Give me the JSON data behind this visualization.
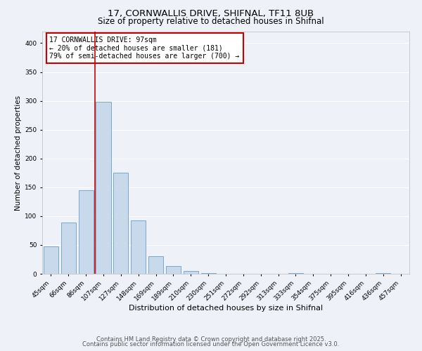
{
  "title": "17, CORNWALLIS DRIVE, SHIFNAL, TF11 8UB",
  "subtitle": "Size of property relative to detached houses in Shifnal",
  "xlabel": "Distribution of detached houses by size in Shifnal",
  "ylabel": "Number of detached properties",
  "bar_labels": [
    "45sqm",
    "66sqm",
    "86sqm",
    "107sqm",
    "127sqm",
    "148sqm",
    "169sqm",
    "189sqm",
    "210sqm",
    "230sqm",
    "251sqm",
    "272sqm",
    "292sqm",
    "313sqm",
    "333sqm",
    "354sqm",
    "375sqm",
    "395sqm",
    "416sqm",
    "436sqm",
    "457sqm"
  ],
  "bar_values": [
    47,
    89,
    145,
    298,
    175,
    92,
    30,
    13,
    5,
    1,
    0,
    0,
    0,
    0,
    1,
    0,
    0,
    0,
    0,
    1,
    0
  ],
  "bar_color": "#c9d9ec",
  "bar_edgecolor": "#6a9fc8",
  "vline_color": "#cc0000",
  "ylim": [
    0,
    420
  ],
  "yticks": [
    0,
    50,
    100,
    150,
    200,
    250,
    300,
    350,
    400
  ],
  "annotation_title": "17 CORNWALLIS DRIVE: 97sqm",
  "annotation_line1": "← 20% of detached houses are smaller (181)",
  "annotation_line2": "79% of semi-detached houses are larger (700) →",
  "annotation_box_color": "#ffffff",
  "annotation_box_edgecolor": "#cc0000",
  "footer1": "Contains HM Land Registry data © Crown copyright and database right 2025.",
  "footer2": "Contains public sector information licensed under the Open Government Licence v3.0.",
  "bg_color": "#eef2f8",
  "grid_color": "#ffffff",
  "title_fontsize": 9.5,
  "subtitle_fontsize": 8.5,
  "xlabel_fontsize": 8,
  "ylabel_fontsize": 7.5,
  "tick_fontsize": 6.5,
  "annotation_fontsize": 7,
  "footer_fontsize": 6
}
